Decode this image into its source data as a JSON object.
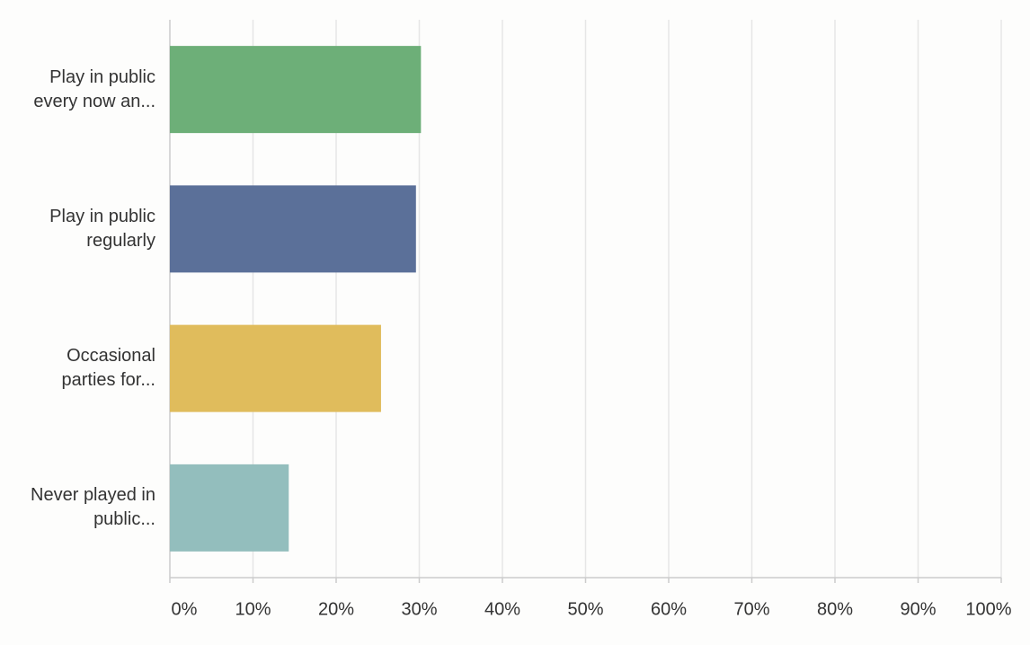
{
  "chart_data": {
    "type": "bar",
    "orientation": "horizontal",
    "categories": [
      "Play in public every now an...",
      "Play in public regularly",
      "Occasional parties for...",
      "Never played in public..."
    ],
    "values": [
      30.2,
      29.6,
      25.4,
      14.3
    ],
    "colors": [
      "#6daf78",
      "#5b7099",
      "#e0bc5c",
      "#93bebd"
    ],
    "xlim": [
      0,
      100
    ],
    "xticks": [
      {
        "value": 0,
        "label": "0%"
      },
      {
        "value": 10,
        "label": "10%"
      },
      {
        "value": 20,
        "label": "20%"
      },
      {
        "value": 30,
        "label": "30%"
      },
      {
        "value": 40,
        "label": "40%"
      },
      {
        "value": 50,
        "label": "50%"
      },
      {
        "value": 60,
        "label": "60%"
      },
      {
        "value": 70,
        "label": "70%"
      },
      {
        "value": 80,
        "label": "80%"
      },
      {
        "value": 90,
        "label": "90%"
      },
      {
        "value": 100,
        "label": "100%"
      }
    ],
    "grid": true
  }
}
